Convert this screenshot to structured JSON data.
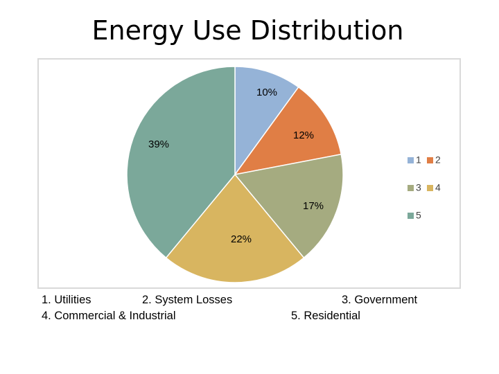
{
  "title": "Energy Use Distribution",
  "captions": {
    "line1_a": "1.  Utilities",
    "line1_b": "2.  System Losses",
    "line1_c": "3.  Government",
    "line2_a": "4.  Commercial & Industrial",
    "line2_b": "5.  Residential"
  },
  "chart_data": {
    "type": "pie",
    "title": "Energy Use Distribution",
    "categories": [
      "1",
      "2",
      "3",
      "4",
      "5"
    ],
    "values": [
      10,
      12,
      17,
      22,
      39
    ],
    "data_labels": [
      "10%",
      "12%",
      "17%",
      "22%",
      "39%"
    ],
    "colors": [
      "#95B3D7",
      "#E07E45",
      "#A5AB80",
      "#D8B560",
      "#7BA89A"
    ],
    "start_angle_deg": 0,
    "direction": "clockwise",
    "legend": {
      "placement": "right",
      "entries": [
        "1",
        "2",
        "3",
        "4",
        "5"
      ]
    }
  }
}
